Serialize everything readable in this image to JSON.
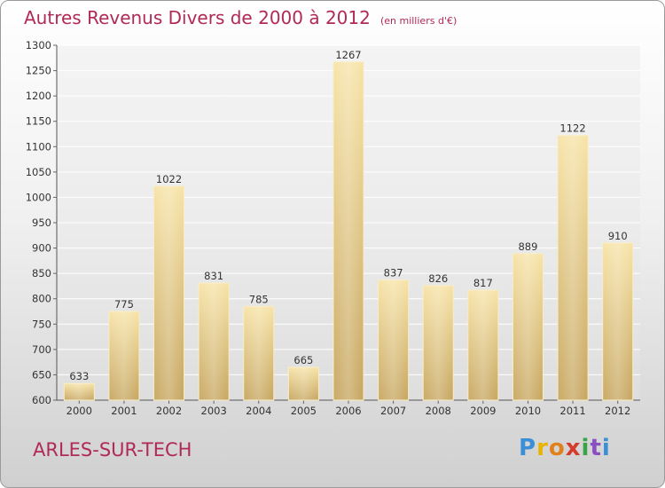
{
  "header": {
    "title": "Autres Revenus Divers de 2000 à 2012",
    "unit": "(en milliers d'€)"
  },
  "footer": {
    "place": "ARLES-SUR-TECH",
    "logo": {
      "letters": [
        "P",
        "r",
        "o",
        "x",
        "i",
        "t",
        "i"
      ],
      "colors": [
        "#3a8fd6",
        "#e8b400",
        "#e2801c",
        "#d63a2a",
        "#3aa34a",
        "#8a4fc0",
        "#3a8fd6"
      ]
    }
  },
  "colors": {
    "title": "#b02a55",
    "bar_light": "#f6e0a0",
    "bar_dark": "#c9a860",
    "axis_text": "#333333",
    "grid": "#ffffff"
  },
  "chart_data": {
    "type": "bar",
    "categories": [
      "2000",
      "2001",
      "2002",
      "2003",
      "2004",
      "2005",
      "2006",
      "2007",
      "2008",
      "2009",
      "2010",
      "2011",
      "2012"
    ],
    "values": [
      633,
      775,
      1022,
      831,
      785,
      665,
      1267,
      837,
      826,
      817,
      889,
      1122,
      910
    ],
    "ylim": [
      600,
      1300
    ],
    "yticks": [
      600,
      650,
      700,
      750,
      800,
      850,
      900,
      950,
      1000,
      1050,
      1100,
      1150,
      1200,
      1250,
      1300
    ],
    "grid": true,
    "data_labels": true
  }
}
